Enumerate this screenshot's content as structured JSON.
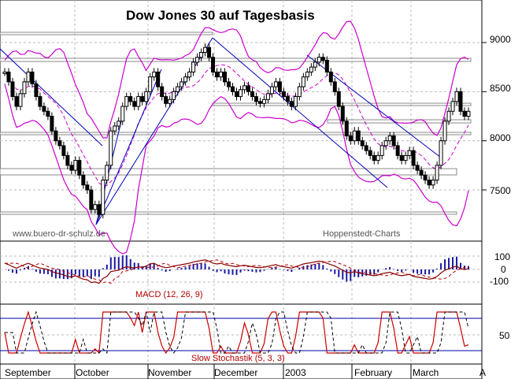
{
  "chart_data": {
    "type": "candlestick",
    "title": "Dow Jones 30 auf Tagesbasis",
    "watermark_left": "www.buero-dr-schulz.de",
    "watermark_right": "Hoppenstedt-Charts",
    "price_axis": {
      "ticks": [
        "9000",
        "8500",
        "8000",
        "7500"
      ],
      "values": [
        9000,
        8500,
        8000,
        7500
      ],
      "ylim": [
        7100,
        9300
      ]
    },
    "macd_axis": {
      "ticks": [
        "100",
        "0",
        "-100"
      ]
    },
    "stoch_axis": {
      "ticks": [
        "50"
      ]
    },
    "months": [
      "September",
      "October",
      "November",
      "December",
      "2003",
      "February",
      "March",
      "A"
    ],
    "macd": {
      "label": "MACD (12, 26, 9)"
    },
    "stochastic": {
      "label": "Slow Stochastik (5, 3, 3)"
    },
    "grid": true,
    "colors": {
      "price": "#000000",
      "bollinger": "#cc00cc",
      "trendline": "#0000bb",
      "support": "#888888",
      "macd_line": "#8b0000",
      "signal": "#b00000",
      "hist": "#1a1aa0",
      "stoch": "#cc0000"
    },
    "close_series": [
      8700,
      8600,
      8450,
      8350,
      8480,
      8600,
      8700,
      8580,
      8450,
      8350,
      8300,
      8250,
      8100,
      8000,
      7950,
      7850,
      7750,
      7700,
      7800,
      7650,
      7550,
      7500,
      7300,
      7350,
      7250,
      7600,
      7750,
      8100,
      8150,
      8200,
      8350,
      8450,
      8400,
      8350,
      8450,
      8400,
      8500,
      8650,
      8700,
      8550,
      8450,
      8380,
      8420,
      8500,
      8550,
      8600,
      8650,
      8700,
      8800,
      8850,
      8900,
      8950,
      8850,
      8700,
      8650,
      8700,
      8600,
      8550,
      8500,
      8450,
      8520,
      8560,
      8500,
      8450,
      8400,
      8380,
      8420,
      8480,
      8550,
      8600,
      8500,
      8450,
      8400,
      8350,
      8450,
      8550,
      8650,
      8700,
      8750,
      8800,
      8850,
      8820,
      8700,
      8600,
      8500,
      8350,
      8200,
      8050,
      8000,
      8100,
      8000,
      7950,
      7900,
      7850,
      7800,
      7850,
      7950,
      8000,
      8050,
      7950,
      7850,
      7800,
      7850,
      7900,
      7750,
      7700,
      7650,
      7600,
      7550,
      7600,
      7750,
      8000,
      8200,
      8300,
      8400,
      8500,
      8300,
      8250,
      8300
    ]
  }
}
